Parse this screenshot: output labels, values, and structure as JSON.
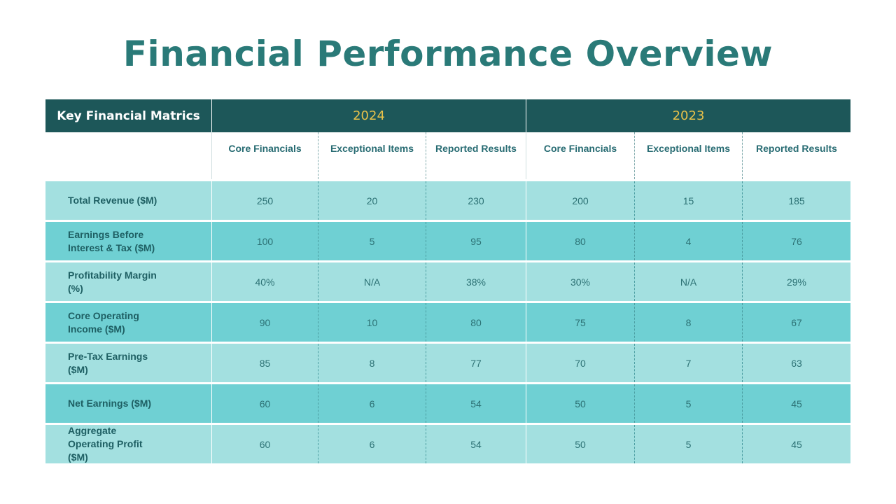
{
  "title": "Financial Performance Overview",
  "colors": {
    "title": "#2a7a78",
    "header_bg": "#1d5759",
    "year_text": "#e8c14a",
    "row_light": "#a3e0e0",
    "row_dark": "#6fd0d3"
  },
  "table": {
    "lead_header": "Key Financial Matrics",
    "years": [
      "2024",
      "2023"
    ],
    "subheaders": [
      "Core Financials",
      "Exceptional Items",
      "Reported Results",
      "Core Financials",
      "Exceptional Items",
      "Reported Results"
    ],
    "rows": [
      {
        "label": "Total Revenue ($M)",
        "values": [
          "250",
          "20",
          "230",
          "200",
          "15",
          "185"
        ]
      },
      {
        "label": "Earnings Before Interest & Tax ($M)",
        "values": [
          "100",
          "5",
          "95",
          "80",
          "4",
          "76"
        ]
      },
      {
        "label": "Profitability Margin (%)",
        "values": [
          "40%",
          "N/A",
          "38%",
          "30%",
          "N/A",
          "29%"
        ]
      },
      {
        "label": "Core Operating Income ($M)",
        "values": [
          "90",
          "10",
          "80",
          "75",
          "8",
          "67"
        ]
      },
      {
        "label": "Pre-Tax Earnings ($M)",
        "values": [
          "85",
          "8",
          "77",
          "70",
          "7",
          "63"
        ]
      },
      {
        "label": "Net Earnings ($M)",
        "values": [
          "60",
          "6",
          "54",
          "50",
          "5",
          "45"
        ]
      },
      {
        "label": "Aggregate Operating Profit ($M)",
        "values": [
          "60",
          "6",
          "54",
          "50",
          "5",
          "45"
        ]
      }
    ]
  }
}
